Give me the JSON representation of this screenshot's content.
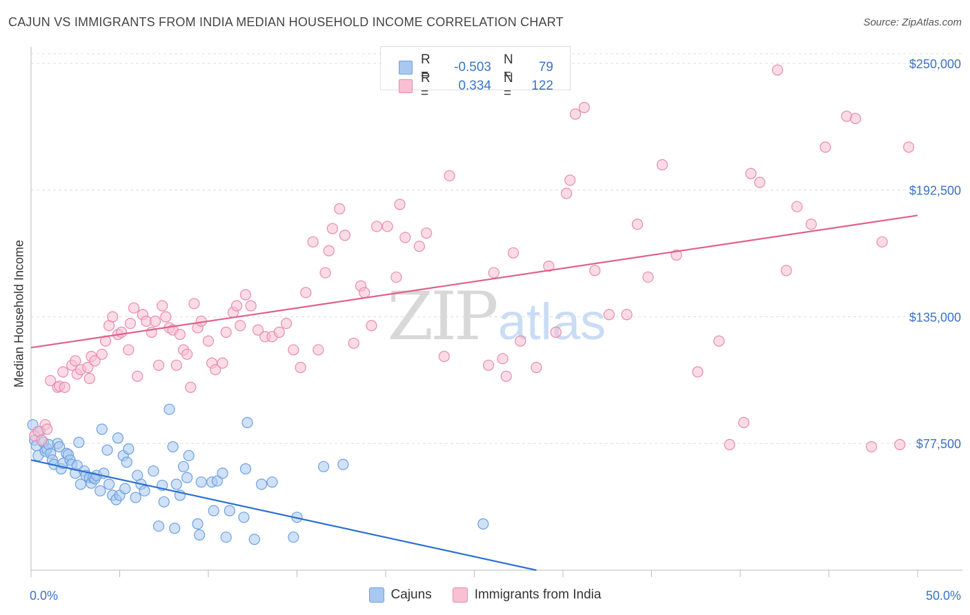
{
  "title": "CAJUN VS IMMIGRANTS FROM INDIA MEDIAN HOUSEHOLD INCOME CORRELATION CHART",
  "source": "Source: ZipAtlas.com",
  "watermark": {
    "zip": "ZIP",
    "atlas": "atlas"
  },
  "legend_box": {
    "rows": [
      {
        "r_label": "R =",
        "r_value": "-0.503",
        "n_label": "N =",
        "n_value": "79",
        "color": "#a9c8f0",
        "border": "#6a9fe0"
      },
      {
        "r_label": "R =",
        "r_value": "0.334",
        "n_label": "N =",
        "n_value": "122",
        "color": "#f8c0d2",
        "border": "#e88aaa"
      }
    ]
  },
  "bottom_legend": [
    {
      "label": "Cajuns",
      "color": "#a9c8f0",
      "border": "#6a9fe0"
    },
    {
      "label": "Immigrants from India",
      "color": "#f8c0d2",
      "border": "#e88aaa"
    }
  ],
  "chart_data": {
    "type": "scatter",
    "title": "CAJUN VS IMMIGRANTS FROM INDIA MEDIAN HOUSEHOLD INCOME CORRELATION CHART",
    "xlabel": "",
    "ylabel": "Median Household Income",
    "xlim": [
      0,
      50
    ],
    "ylim": [
      20000,
      260000
    ],
    "x_tick_labels": [
      "0.0%",
      "50.0%"
    ],
    "y_ticks": [
      77500,
      135000,
      192500,
      250000
    ],
    "y_tick_labels": [
      "$77,500",
      "$135,000",
      "$192,500",
      "$250,000"
    ],
    "grid": true,
    "series": [
      {
        "name": "Cajuns",
        "color": "#6a9fe0",
        "fill": "#a9c8f0",
        "trend": {
          "x": [
            0,
            28.5
          ],
          "y": [
            70000,
            20000
          ],
          "color": "#2a6fd0"
        },
        "points": [
          [
            0.1,
            86000
          ],
          [
            0.2,
            79000
          ],
          [
            0.3,
            76500
          ],
          [
            0.4,
            72000
          ],
          [
            0.5,
            83000
          ],
          [
            0.7,
            78000
          ],
          [
            0.8,
            74000
          ],
          [
            0.9,
            75000
          ],
          [
            1.0,
            77000
          ],
          [
            1.1,
            73000
          ],
          [
            1.2,
            70000
          ],
          [
            1.3,
            68000
          ],
          [
            1.5,
            77500
          ],
          [
            1.6,
            76000
          ],
          [
            1.7,
            66000
          ],
          [
            1.8,
            68500
          ],
          [
            2.0,
            73000
          ],
          [
            2.1,
            72500
          ],
          [
            2.2,
            70000
          ],
          [
            2.3,
            68000
          ],
          [
            2.5,
            64000
          ],
          [
            2.6,
            67500
          ],
          [
            2.7,
            78000
          ],
          [
            2.8,
            59000
          ],
          [
            3.0,
            65000
          ],
          [
            3.1,
            63000
          ],
          [
            3.3,
            62000
          ],
          [
            3.4,
            59500
          ],
          [
            3.5,
            62000
          ],
          [
            3.6,
            61500
          ],
          [
            3.7,
            63000
          ],
          [
            3.9,
            56000
          ],
          [
            4.0,
            84000
          ],
          [
            4.1,
            64000
          ],
          [
            4.3,
            74500
          ],
          [
            4.4,
            59000
          ],
          [
            4.6,
            54000
          ],
          [
            4.8,
            52000
          ],
          [
            4.9,
            80000
          ],
          [
            5.0,
            54000
          ],
          [
            5.2,
            72000
          ],
          [
            5.3,
            57000
          ],
          [
            5.4,
            69000
          ],
          [
            5.5,
            75000
          ],
          [
            5.9,
            53000
          ],
          [
            6.0,
            63000
          ],
          [
            6.2,
            59000
          ],
          [
            6.4,
            56000
          ],
          [
            6.9,
            65000
          ],
          [
            7.2,
            40000
          ],
          [
            7.4,
            58500
          ],
          [
            7.5,
            51000
          ],
          [
            7.8,
            93000
          ],
          [
            8.0,
            76000
          ],
          [
            8.1,
            39000
          ],
          [
            8.2,
            59000
          ],
          [
            8.4,
            54000
          ],
          [
            8.6,
            67000
          ],
          [
            8.8,
            62000
          ],
          [
            8.9,
            72000
          ],
          [
            9.4,
            41000
          ],
          [
            9.5,
            36000
          ],
          [
            9.6,
            60000
          ],
          [
            10.2,
            60000
          ],
          [
            10.5,
            60500
          ],
          [
            10.8,
            64000
          ],
          [
            10.3,
            47000
          ],
          [
            11.0,
            35000
          ],
          [
            11.2,
            47000
          ],
          [
            12.0,
            44000
          ],
          [
            12.1,
            66000
          ],
          [
            12.2,
            87000
          ],
          [
            12.6,
            34000
          ],
          [
            13.0,
            59000
          ],
          [
            13.6,
            60000
          ],
          [
            14.8,
            35000
          ],
          [
            15.0,
            44000
          ],
          [
            16.5,
            67000
          ],
          [
            17.6,
            68000
          ],
          [
            25.5,
            41000
          ]
        ]
      },
      {
        "name": "Immigrants from India",
        "color": "#e88aaa",
        "fill": "#f8c0d2",
        "trend": {
          "x": [
            0,
            50
          ],
          "y": [
            121000,
            181000
          ],
          "color": "#e0608a"
        },
        "points": [
          [
            0.2,
            81000
          ],
          [
            0.4,
            83000
          ],
          [
            0.6,
            79000
          ],
          [
            0.8,
            86000
          ],
          [
            0.9,
            84000
          ],
          [
            1.1,
            106000
          ],
          [
            1.5,
            103000
          ],
          [
            1.6,
            103500
          ],
          [
            1.8,
            110000
          ],
          [
            1.9,
            103000
          ],
          [
            2.3,
            113000
          ],
          [
            2.5,
            115000
          ],
          [
            2.6,
            109000
          ],
          [
            2.8,
            111000
          ],
          [
            3.2,
            112000
          ],
          [
            3.3,
            107000
          ],
          [
            3.4,
            117000
          ],
          [
            3.6,
            115000
          ],
          [
            4.0,
            118000
          ],
          [
            4.2,
            124000
          ],
          [
            4.4,
            131000
          ],
          [
            4.6,
            135000
          ],
          [
            4.9,
            127000
          ],
          [
            5.1,
            128000
          ],
          [
            5.5,
            120000
          ],
          [
            5.6,
            132000
          ],
          [
            5.8,
            139000
          ],
          [
            6.0,
            108000
          ],
          [
            6.3,
            136000
          ],
          [
            6.5,
            133000
          ],
          [
            6.8,
            128000
          ],
          [
            7.0,
            133000
          ],
          [
            7.2,
            113000
          ],
          [
            7.4,
            140000
          ],
          [
            7.6,
            135000
          ],
          [
            7.8,
            130000
          ],
          [
            8.0,
            129000
          ],
          [
            8.2,
            113000
          ],
          [
            8.4,
            127000
          ],
          [
            8.6,
            120000
          ],
          [
            8.8,
            118000
          ],
          [
            9.0,
            103000
          ],
          [
            9.2,
            141000
          ],
          [
            9.4,
            130000
          ],
          [
            9.6,
            133000
          ],
          [
            10.0,
            124000
          ],
          [
            10.2,
            114000
          ],
          [
            10.4,
            111000
          ],
          [
            10.8,
            114000
          ],
          [
            11.0,
            128000
          ],
          [
            11.4,
            137000
          ],
          [
            11.6,
            140000
          ],
          [
            11.8,
            131000
          ],
          [
            12.1,
            145000
          ],
          [
            12.4,
            140000
          ],
          [
            12.8,
            129000
          ],
          [
            13.2,
            126000
          ],
          [
            13.6,
            126000
          ],
          [
            14.0,
            128000
          ],
          [
            14.4,
            132000
          ],
          [
            14.8,
            120000
          ],
          [
            15.2,
            112000
          ],
          [
            15.5,
            146000
          ],
          [
            15.9,
            169000
          ],
          [
            16.2,
            120000
          ],
          [
            16.6,
            155000
          ],
          [
            16.8,
            165000
          ],
          [
            17.0,
            175000
          ],
          [
            17.4,
            184000
          ],
          [
            17.7,
            172000
          ],
          [
            18.2,
            123000
          ],
          [
            18.6,
            149000
          ],
          [
            18.8,
            146000
          ],
          [
            19.2,
            131000
          ],
          [
            19.5,
            176000
          ],
          [
            20.1,
            176000
          ],
          [
            20.6,
            153000
          ],
          [
            20.8,
            186000
          ],
          [
            21.1,
            171000
          ],
          [
            21.9,
            167000
          ],
          [
            22.3,
            173000
          ],
          [
            23.3,
            117000
          ],
          [
            23.6,
            199000
          ],
          [
            25.8,
            113000
          ],
          [
            26.1,
            155000
          ],
          [
            26.6,
            116000
          ],
          [
            26.8,
            108000
          ],
          [
            27.2,
            164000
          ],
          [
            27.6,
            124000
          ],
          [
            28.5,
            112000
          ],
          [
            29.2,
            158000
          ],
          [
            29.6,
            128000
          ],
          [
            30.2,
            191000
          ],
          [
            30.4,
            197000
          ],
          [
            30.7,
            227000
          ],
          [
            31.2,
            230000
          ],
          [
            31.8,
            156000
          ],
          [
            32.6,
            136000
          ],
          [
            33.6,
            136000
          ],
          [
            34.2,
            177000
          ],
          [
            34.8,
            153000
          ],
          [
            35.6,
            204000
          ],
          [
            36.4,
            163000
          ],
          [
            37.6,
            110000
          ],
          [
            38.8,
            124000
          ],
          [
            39.4,
            77000
          ],
          [
            40.2,
            87000
          ],
          [
            41.1,
            196000
          ],
          [
            42.1,
            247000
          ],
          [
            43.2,
            185000
          ],
          [
            44.8,
            212000
          ],
          [
            46.0,
            226000
          ],
          [
            47.4,
            76000
          ],
          [
            49.0,
            77000
          ],
          [
            48.0,
            169000
          ],
          [
            49.5,
            212000
          ],
          [
            46.5,
            225000
          ],
          [
            44.0,
            177000
          ],
          [
            42.6,
            156000
          ],
          [
            40.6,
            200000
          ]
        ]
      }
    ]
  }
}
